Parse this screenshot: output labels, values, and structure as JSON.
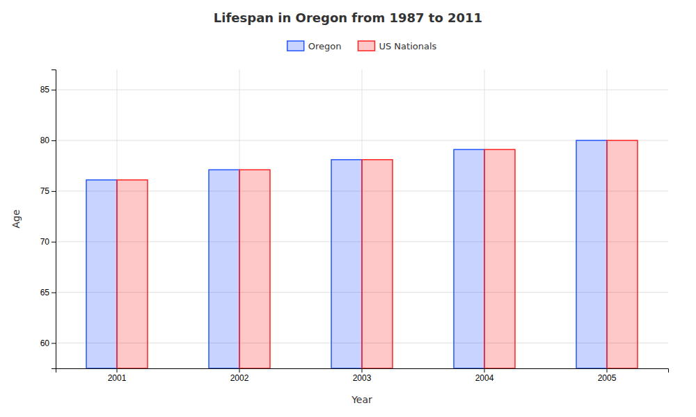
{
  "chart_data": {
    "type": "bar",
    "title": "Lifespan in Oregon from 1987 to 2011",
    "x_label": "Year",
    "y_label": "Age",
    "categories": [
      "2001",
      "2002",
      "2003",
      "2004",
      "2005"
    ],
    "series": [
      {
        "name": "Oregon",
        "color": "#2255ff",
        "values": [
          76.1,
          77.1,
          78.1,
          79.1,
          80.0
        ]
      },
      {
        "name": "US Nationals",
        "color": "#ff2222",
        "values": [
          76.1,
          77.1,
          78.1,
          79.1,
          80.0
        ]
      }
    ],
    "ylim": [
      57.5,
      87
    ],
    "yticks": [
      60,
      65,
      70,
      75,
      80,
      85
    ],
    "grid": true,
    "legend": "upper center"
  }
}
